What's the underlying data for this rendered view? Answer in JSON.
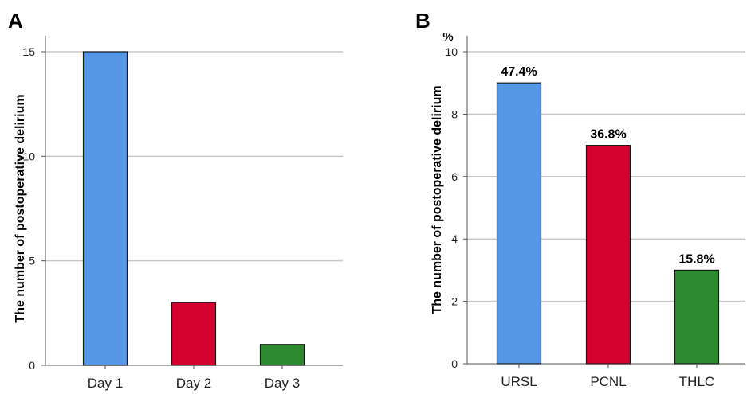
{
  "colors": {
    "blue": "#5597e6",
    "red": "#d6002e",
    "green": "#2e8a30",
    "grid": "#c8c8c8",
    "axis": "#555555"
  },
  "chart_data": [
    {
      "panel": "A",
      "type": "bar",
      "ylabel": "The number of postoperative delirium",
      "categories": [
        "Day 1",
        "Day 2",
        "Day 3"
      ],
      "values": [
        15,
        3,
        1
      ],
      "ylim": [
        0,
        15
      ],
      "yticks": [
        0,
        5,
        10,
        15
      ],
      "grid": true,
      "bar_colors": [
        "#5597e6",
        "#d6002e",
        "#2e8a30"
      ]
    },
    {
      "panel": "B",
      "type": "bar",
      "ylabel": "The number of postoperative delirium",
      "yunit": "%",
      "categories": [
        "URSL",
        "PCNL",
        "THLC"
      ],
      "values": [
        9,
        7,
        3
      ],
      "data_labels": [
        "47.4%",
        "36.8%",
        "15.8%"
      ],
      "ylim": [
        0,
        10
      ],
      "yticks": [
        0,
        2,
        4,
        6,
        8,
        10
      ],
      "grid": true,
      "bar_colors": [
        "#5597e6",
        "#d6002e",
        "#2e8a30"
      ]
    }
  ]
}
